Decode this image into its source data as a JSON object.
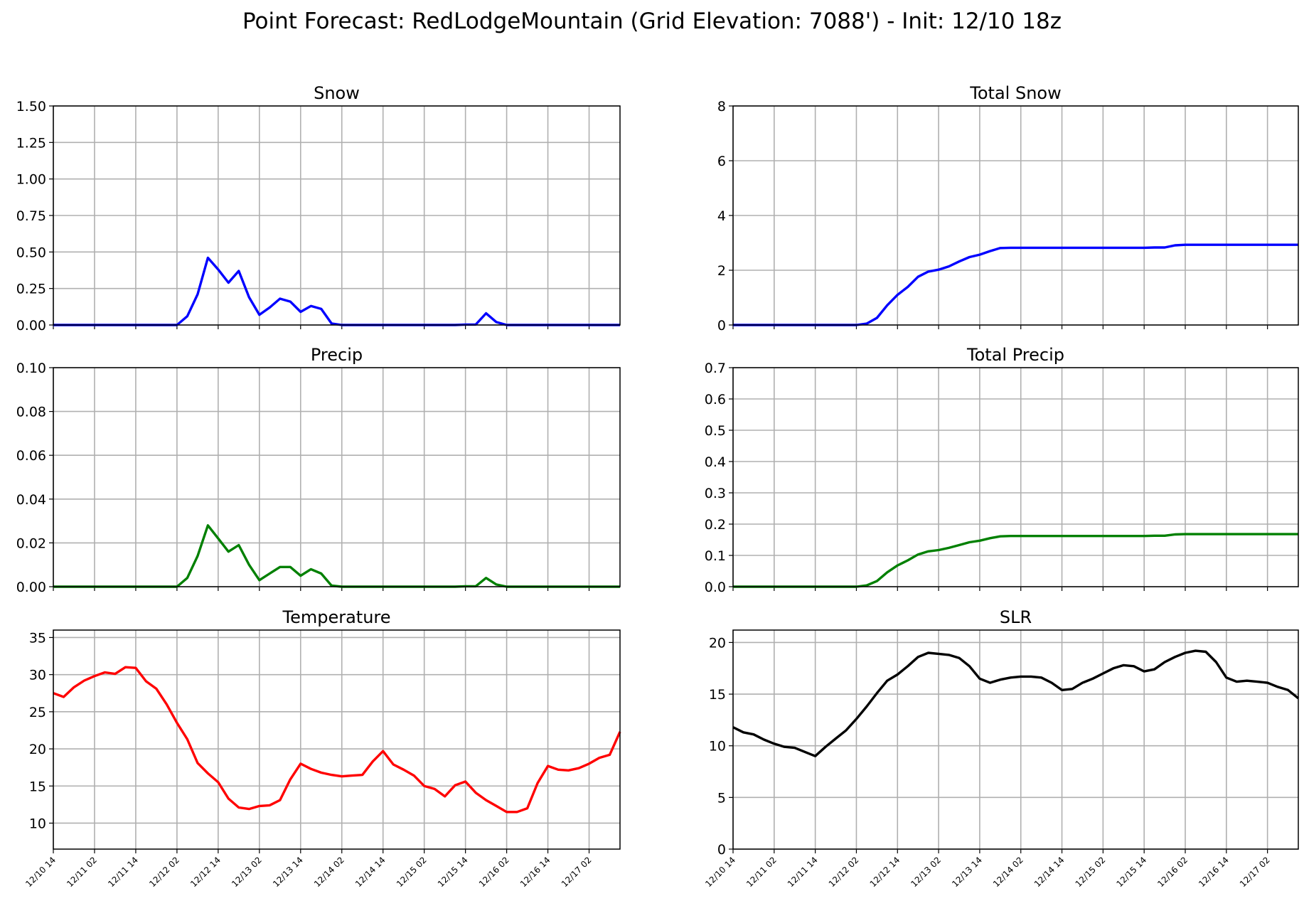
{
  "figure": {
    "title": "Point Forecast: RedLodgeMountain (Grid Elevation: 7088') - Init: 12/10 18z"
  },
  "x_tick_labels": [
    "12/10 14",
    "12/11 02",
    "12/11 14",
    "12/12 02",
    "12/12 14",
    "12/13 02",
    "12/13 14",
    "12/14 02",
    "12/14 14",
    "12/15 02",
    "12/15 14",
    "12/16 02",
    "12/16 14",
    "12/17 02"
  ],
  "x_range_hours": [
    0,
    165
  ],
  "chart_data": [
    {
      "id": "snow",
      "type": "line",
      "title": "Snow",
      "color": "#0000ff",
      "ylim": [
        0,
        1.5
      ],
      "yticks": [
        "0.00",
        "0.25",
        "0.50",
        "0.75",
        "1.00",
        "1.25",
        "1.50"
      ],
      "grid": true,
      "show_x_labels": false,
      "x": [
        0,
        3,
        6,
        9,
        12,
        15,
        18,
        21,
        24,
        27,
        30,
        33,
        36,
        39,
        42,
        45,
        48,
        51,
        54,
        57,
        60,
        63,
        66,
        69,
        72,
        75,
        78,
        81,
        84,
        87,
        90,
        93,
        96,
        99,
        102,
        105,
        108,
        111,
        114,
        117,
        120,
        123,
        126,
        129,
        132,
        135,
        138,
        141,
        144,
        147,
        150,
        153,
        156,
        159,
        162,
        165
      ],
      "series": [
        {
          "values": [
            0,
            0,
            0,
            0,
            0,
            0,
            0,
            0,
            0,
            0,
            0,
            0,
            0,
            0.06,
            0.21,
            0.46,
            0.38,
            0.29,
            0.37,
            0.19,
            0.07,
            0.12,
            0.18,
            0.16,
            0.09,
            0.13,
            0.11,
            0.01,
            0,
            0,
            0,
            0,
            0,
            0,
            0,
            0,
            0,
            0,
            0,
            0,
            0.003,
            0.003,
            0.08,
            0.02,
            0,
            0,
            0,
            0,
            0,
            0,
            0,
            0,
            0,
            0,
            0,
            0
          ]
        }
      ]
    },
    {
      "id": "total_snow",
      "type": "line",
      "title": "Total Snow",
      "color": "#0000ff",
      "ylim": [
        0,
        8
      ],
      "yticks": [
        "0",
        "2",
        "4",
        "6",
        "8"
      ],
      "grid": true,
      "show_x_labels": false,
      "x": [
        0,
        3,
        6,
        9,
        12,
        15,
        18,
        21,
        24,
        27,
        30,
        33,
        36,
        39,
        42,
        45,
        48,
        51,
        54,
        57,
        60,
        63,
        66,
        69,
        72,
        75,
        78,
        81,
        84,
        87,
        90,
        93,
        96,
        99,
        102,
        105,
        108,
        111,
        114,
        117,
        120,
        123,
        126,
        129,
        132,
        135,
        138,
        141,
        144,
        147,
        150,
        153,
        156,
        159,
        162,
        165
      ],
      "series": [
        {
          "values": [
            0,
            0,
            0,
            0,
            0,
            0,
            0,
            0,
            0,
            0,
            0,
            0,
            0,
            0.05,
            0.26,
            0.72,
            1.1,
            1.39,
            1.76,
            1.95,
            2.02,
            2.14,
            2.32,
            2.48,
            2.57,
            2.7,
            2.81,
            2.82,
            2.82,
            2.82,
            2.82,
            2.82,
            2.82,
            2.82,
            2.82,
            2.82,
            2.82,
            2.82,
            2.82,
            2.82,
            2.82,
            2.83,
            2.83,
            2.91,
            2.93,
            2.93,
            2.93,
            2.93,
            2.93,
            2.93,
            2.93,
            2.93,
            2.93,
            2.93,
            2.93,
            2.93
          ]
        }
      ]
    },
    {
      "id": "precip",
      "type": "line",
      "title": "Precip",
      "color": "#008000",
      "ylim": [
        0,
        0.1
      ],
      "yticks": [
        "0.00",
        "0.02",
        "0.04",
        "0.06",
        "0.08",
        "0.10"
      ],
      "grid": true,
      "show_x_labels": false,
      "x": [
        0,
        3,
        6,
        9,
        12,
        15,
        18,
        21,
        24,
        27,
        30,
        33,
        36,
        39,
        42,
        45,
        48,
        51,
        54,
        57,
        60,
        63,
        66,
        69,
        72,
        75,
        78,
        81,
        84,
        87,
        90,
        93,
        96,
        99,
        102,
        105,
        108,
        111,
        114,
        117,
        120,
        123,
        126,
        129,
        132,
        135,
        138,
        141,
        144,
        147,
        150,
        153,
        156,
        159,
        162,
        165
      ],
      "series": [
        {
          "values": [
            0,
            0,
            0,
            0,
            0,
            0,
            0,
            0,
            0,
            0,
            0,
            0,
            0,
            0.004,
            0.014,
            0.028,
            0.022,
            0.016,
            0.019,
            0.01,
            0.003,
            0.006,
            0.009,
            0.009,
            0.005,
            0.008,
            0.006,
            0.0005,
            0,
            0,
            0,
            0,
            0,
            0,
            0,
            0,
            0,
            0,
            0,
            0,
            0.0002,
            0.0002,
            0.004,
            0.001,
            0,
            0,
            0,
            0,
            0,
            0,
            0,
            0,
            0,
            0,
            0,
            0
          ]
        }
      ]
    },
    {
      "id": "total_precip",
      "type": "line",
      "title": "Total Precip",
      "color": "#008000",
      "ylim": [
        0,
        0.7
      ],
      "yticks": [
        "0.0",
        "0.1",
        "0.2",
        "0.3",
        "0.4",
        "0.5",
        "0.6",
        "0.7"
      ],
      "grid": true,
      "show_x_labels": false,
      "x": [
        0,
        3,
        6,
        9,
        12,
        15,
        18,
        21,
        24,
        27,
        30,
        33,
        36,
        39,
        42,
        45,
        48,
        51,
        54,
        57,
        60,
        63,
        66,
        69,
        72,
        75,
        78,
        81,
        84,
        87,
        90,
        93,
        96,
        99,
        102,
        105,
        108,
        111,
        114,
        117,
        120,
        123,
        126,
        129,
        132,
        135,
        138,
        141,
        144,
        147,
        150,
        153,
        156,
        159,
        162,
        165
      ],
      "series": [
        {
          "values": [
            0,
            0,
            0,
            0,
            0,
            0,
            0,
            0,
            0,
            0,
            0,
            0,
            0,
            0.004,
            0.018,
            0.046,
            0.068,
            0.084,
            0.103,
            0.113,
            0.117,
            0.124,
            0.133,
            0.142,
            0.147,
            0.155,
            0.161,
            0.162,
            0.162,
            0.162,
            0.162,
            0.162,
            0.162,
            0.162,
            0.162,
            0.162,
            0.162,
            0.162,
            0.162,
            0.162,
            0.162,
            0.163,
            0.163,
            0.167,
            0.168,
            0.168,
            0.168,
            0.168,
            0.168,
            0.168,
            0.168,
            0.168,
            0.168,
            0.168,
            0.168,
            0.168
          ]
        }
      ]
    },
    {
      "id": "temperature",
      "type": "line",
      "title": "Temperature",
      "color": "#ff0000",
      "ylim": [
        6.5,
        36
      ],
      "yticks": [
        "10",
        "15",
        "20",
        "25",
        "30",
        "35"
      ],
      "grid": true,
      "show_x_labels": true,
      "x": [
        0,
        3,
        6,
        9,
        12,
        15,
        18,
        21,
        24,
        27,
        30,
        33,
        36,
        39,
        42,
        45,
        48,
        51,
        54,
        57,
        60,
        63,
        66,
        69,
        72,
        75,
        78,
        81,
        84,
        87,
        90,
        93,
        96,
        99,
        102,
        105,
        108,
        111,
        114,
        117,
        120,
        123,
        126,
        129,
        132,
        135,
        138,
        141,
        144,
        147,
        150,
        153,
        156,
        159,
        162,
        165
      ],
      "series": [
        {
          "values": [
            27.5,
            27.0,
            28.3,
            29.2,
            29.8,
            30.3,
            30.1,
            31.0,
            30.9,
            29.1,
            28.1,
            26.0,
            23.5,
            21.3,
            18.1,
            16.7,
            15.5,
            13.3,
            12.1,
            11.9,
            12.3,
            12.4,
            13.1,
            15.9,
            18.0,
            17.3,
            16.8,
            16.5,
            16.3,
            16.4,
            16.5,
            18.3,
            19.7,
            17.9,
            17.2,
            16.4,
            15.0,
            14.6,
            13.6,
            15.1,
            15.6,
            14.1,
            13.1,
            12.3,
            11.5,
            11.5,
            12.0,
            15.4,
            17.7,
            17.2,
            17.1,
            17.4,
            18.0,
            18.8,
            19.2,
            22.3
          ]
        }
      ]
    },
    {
      "id": "slr",
      "type": "line",
      "title": "SLR",
      "color": "#000000",
      "ylim": [
        0,
        21.2
      ],
      "yticks": [
        "0",
        "5",
        "10",
        "15",
        "20"
      ],
      "grid": true,
      "show_x_labels": true,
      "x": [
        0,
        3,
        6,
        9,
        12,
        15,
        18,
        21,
        24,
        27,
        30,
        33,
        36,
        39,
        42,
        45,
        48,
        51,
        54,
        57,
        60,
        63,
        66,
        69,
        72,
        75,
        78,
        81,
        84,
        87,
        90,
        93,
        96,
        99,
        102,
        105,
        108,
        111,
        114,
        117,
        120,
        123,
        126,
        129,
        132,
        135,
        138,
        141,
        144,
        147,
        150,
        153,
        156,
        159,
        162,
        165
      ],
      "series": [
        {
          "values": [
            11.8,
            11.3,
            11.1,
            10.6,
            10.2,
            9.9,
            9.8,
            9.4,
            9.0,
            9.9,
            10.7,
            11.5,
            12.6,
            13.8,
            15.1,
            16.3,
            16.9,
            17.7,
            18.6,
            19.0,
            18.9,
            18.8,
            18.5,
            17.7,
            16.5,
            16.1,
            16.4,
            16.6,
            16.7,
            16.7,
            16.6,
            16.1,
            15.4,
            15.5,
            16.1,
            16.5,
            17.0,
            17.5,
            17.8,
            17.7,
            17.2,
            17.4,
            18.1,
            18.6,
            19.0,
            19.2,
            19.1,
            18.1,
            16.6,
            16.2,
            16.3,
            16.2,
            16.1,
            15.7,
            15.4,
            14.6
          ]
        }
      ]
    }
  ]
}
